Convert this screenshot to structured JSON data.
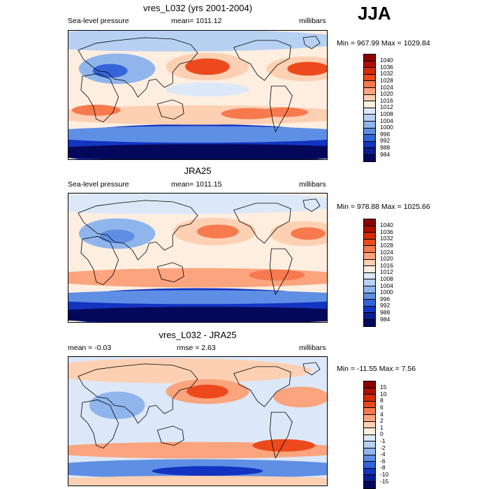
{
  "season": "JJA",
  "panels": [
    {
      "id": "model",
      "title": "vres_L032 (yrs 2001-2004)",
      "left_label": "Sea-level pressure",
      "center_label": "mean= 1011.12",
      "right_label": "millibars",
      "minmax": "Min = 967.99 Max = 1029.84",
      "levels": [
        "1040",
        "1036",
        "1032",
        "1028",
        "1024",
        "1020",
        "1016",
        "1012",
        "1008",
        "1004",
        "1000",
        "996",
        "992",
        "988",
        "984"
      ],
      "colors": [
        "#8b0000",
        "#b00f00",
        "#d62a07",
        "#ec4a1d",
        "#f67a4e",
        "#fba47e",
        "#fdd0b3",
        "#fdeee0",
        "#dce8f8",
        "#b8d1f3",
        "#8fb5ec",
        "#5f8fe4",
        "#3563d8",
        "#1334c1",
        "#0b1c8f",
        "#04085a"
      ]
    },
    {
      "id": "obs",
      "title": "JRA25",
      "left_label": "Sea-level pressure",
      "center_label": "mean= 1011.15",
      "right_label": "millibars",
      "minmax": "Min = 978.88 Max = 1025.66",
      "levels": [
        "1040",
        "1036",
        "1032",
        "1028",
        "1024",
        "1020",
        "1016",
        "1012",
        "1008",
        "1004",
        "1000",
        "996",
        "992",
        "988",
        "984"
      ],
      "colors": [
        "#8b0000",
        "#b00f00",
        "#d62a07",
        "#ec4a1d",
        "#f67a4e",
        "#fba47e",
        "#fdd0b3",
        "#fdeee0",
        "#dce8f8",
        "#b8d1f3",
        "#8fb5ec",
        "#5f8fe4",
        "#3563d8",
        "#1334c1",
        "#0b1c8f",
        "#04085a"
      ]
    },
    {
      "id": "diff",
      "title": "vres_L032 - JRA25",
      "left_label": "mean =  -0.03",
      "center_label": "rmse =   2.63",
      "right_label": "millibars",
      "minmax": "Min = -11.55 Max =   7.56",
      "levels": [
        "15",
        "10",
        "8",
        "6",
        "4",
        "2",
        "1",
        "0",
        "-1",
        "-2",
        "-4",
        "-6",
        "-8",
        "-10",
        "-15"
      ],
      "colors": [
        "#8b0000",
        "#b00f00",
        "#d62a07",
        "#ec4a1d",
        "#f67a4e",
        "#fba47e",
        "#fdd0b3",
        "#fdeee0",
        "#dce8f8",
        "#b8d1f3",
        "#8fb5ec",
        "#5f8fe4",
        "#3563d8",
        "#1334c1",
        "#0b1c8f",
        "#04085a"
      ]
    }
  ]
}
